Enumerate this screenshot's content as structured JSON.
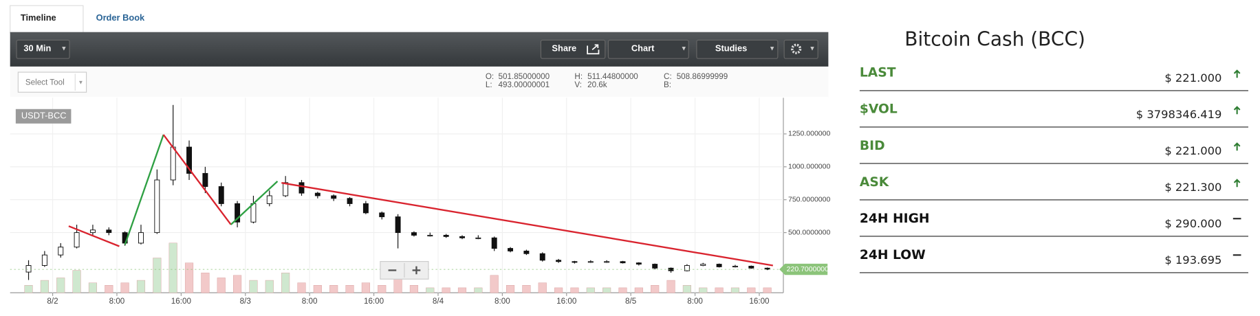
{
  "tabs": [
    "Timeline",
    "Order Book"
  ],
  "toolbar": {
    "interval": "30 Min",
    "share": "Share",
    "chart": "Chart",
    "studies": "Studies"
  },
  "select_tool": "Select Tool",
  "ohlc_info": [
    {
      "label": "O:",
      "value": "501.85000000"
    },
    {
      "label": "L:",
      "value": "493.00000001"
    },
    {
      "label": "H:",
      "value": "511.44800000"
    },
    {
      "label": "V:",
      "value": "20.6k"
    },
    {
      "label": "C:",
      "value": "508.86999999"
    },
    {
      "label": "B:"
    }
  ],
  "chart_data": {
    "type": "candlestick",
    "label": "USDT-BCC",
    "up_color": "#ffffff",
    "down_color": "#111111",
    "x": [
      -3,
      -1,
      1,
      3,
      5,
      7,
      9,
      11,
      13,
      15,
      17,
      19,
      21,
      23,
      25,
      27,
      29,
      31,
      33,
      35,
      37,
      39,
      41,
      43,
      45,
      47,
      49,
      51,
      53,
      55,
      57,
      59,
      61,
      63,
      65,
      67,
      69,
      71,
      73,
      75,
      77,
      79,
      81,
      83,
      85,
      87,
      89
    ],
    "ohlc": [
      [
        200,
        290,
        140,
        250
      ],
      [
        250,
        360,
        240,
        330
      ],
      [
        330,
        420,
        310,
        390
      ],
      [
        390,
        560,
        380,
        500
      ],
      [
        500,
        560,
        480,
        520
      ],
      [
        520,
        540,
        480,
        500
      ],
      [
        500,
        510,
        400,
        420
      ],
      [
        420,
        560,
        410,
        500
      ],
      [
        500,
        980,
        490,
        900
      ],
      [
        900,
        1470,
        860,
        1150
      ],
      [
        1150,
        1200,
        900,
        950
      ],
      [
        950,
        1000,
        800,
        850
      ],
      [
        850,
        880,
        700,
        720
      ],
      [
        720,
        740,
        540,
        580
      ],
      [
        580,
        780,
        570,
        720
      ],
      [
        720,
        820,
        700,
        780
      ],
      [
        780,
        930,
        770,
        880
      ],
      [
        880,
        900,
        780,
        800
      ],
      [
        800,
        810,
        760,
        780
      ],
      [
        780,
        790,
        740,
        760
      ],
      [
        760,
        770,
        700,
        720
      ],
      [
        720,
        740,
        640,
        650
      ],
      [
        650,
        660,
        600,
        620
      ],
      [
        620,
        640,
        380,
        500
      ],
      [
        500,
        510,
        470,
        480
      ],
      [
        480,
        500,
        470,
        480
      ],
      [
        480,
        490,
        460,
        470
      ],
      [
        470,
        480,
        450,
        460
      ],
      [
        460,
        480,
        450,
        460
      ],
      [
        460,
        470,
        360,
        380
      ],
      [
        380,
        390,
        350,
        360
      ],
      [
        360,
        370,
        330,
        340
      ],
      [
        340,
        350,
        280,
        290
      ],
      [
        290,
        300,
        270,
        280
      ],
      [
        280,
        285,
        265,
        275
      ],
      [
        275,
        290,
        270,
        280
      ],
      [
        280,
        290,
        270,
        280
      ],
      [
        280,
        285,
        265,
        270
      ],
      [
        270,
        275,
        250,
        260
      ],
      [
        260,
        265,
        220,
        230
      ],
      [
        230,
        235,
        195,
        210
      ],
      [
        210,
        260,
        205,
        250
      ],
      [
        250,
        270,
        245,
        260
      ],
      [
        260,
        265,
        235,
        240
      ],
      [
        240,
        255,
        235,
        245
      ],
      [
        245,
        250,
        225,
        230
      ],
      [
        230,
        235,
        215,
        221
      ]
    ],
    "volume": [
      3,
      5,
      6,
      9,
      4,
      3,
      4,
      5,
      14,
      20,
      12,
      8,
      6,
      7,
      5,
      5,
      8,
      4,
      3,
      3,
      3,
      4,
      3,
      9,
      3,
      2,
      2,
      2,
      2,
      7,
      3,
      3,
      4,
      2,
      2,
      2,
      2,
      2,
      2,
      3,
      5,
      3,
      2,
      2,
      2,
      2,
      2
    ],
    "volume_up_color": "#cfe8cf",
    "volume_down_color": "#f2c9c9",
    "xlim": [
      -5.3,
      91
    ],
    "xticks": [
      {
        "value": 0,
        "label": "8/2"
      },
      {
        "value": 8,
        "label": "8:00"
      },
      {
        "value": 16,
        "label": "16:00"
      },
      {
        "value": 24,
        "label": "8/3"
      },
      {
        "value": 32,
        "label": "8:00"
      },
      {
        "value": 40,
        "label": "16:00"
      },
      {
        "value": 48,
        "label": "8/4"
      },
      {
        "value": 56,
        "label": "8:00"
      },
      {
        "value": 64,
        "label": "16:00"
      },
      {
        "value": 72,
        "label": "8/5"
      },
      {
        "value": 80,
        "label": "8:00"
      },
      {
        "value": 88,
        "label": "16:00"
      }
    ],
    "ylim": [
      43,
      1524
    ],
    "yticks": [
      {
        "value": 1250,
        "label": "1250.000000"
      },
      {
        "value": 1000,
        "label": "1000.000000"
      },
      {
        "value": 750,
        "label": "750.0000000"
      },
      {
        "value": 500,
        "label": "500.0000000"
      }
    ],
    "grid": true,
    "last_price": {
      "value": 220.7,
      "label": "220.7000000",
      "color": "#8cc47a"
    },
    "trendlines": [
      {
        "color": "#d9232e",
        "x": [
          2,
          8.3
        ],
        "values": [
          549,
          396
        ]
      },
      {
        "color": "#2ea043",
        "x": [
          9,
          13.8
        ],
        "values": [
          408,
          1244
        ]
      },
      {
        "color": "#d9232e",
        "x": [
          13.8,
          22.2
        ],
        "values": [
          1244,
          561
        ]
      },
      {
        "color": "#2ea043",
        "x": [
          22.2,
          28
        ],
        "values": [
          561,
          890
        ]
      },
      {
        "color": "#d9232e",
        "x": [
          28.5,
          89.7
        ],
        "values": [
          878,
          250
        ]
      }
    ]
  },
  "ticker": {
    "title": "Bitcoin Cash (BCC)",
    "rows": [
      {
        "label": "LAST",
        "value": "$ 221.000",
        "trend": "up",
        "color": "#4a8a3a"
      },
      {
        "label": "$VOL",
        "value": "$ 3798346.419",
        "trend": "up",
        "color": "#4a8a3a"
      },
      {
        "label": "BID",
        "value": "$ 221.000",
        "trend": "up",
        "color": "#4a8a3a"
      },
      {
        "label": "ASK",
        "value": "$ 221.300",
        "trend": "up",
        "color": "#4a8a3a"
      },
      {
        "label": "24H HIGH",
        "value": "$ 290.000",
        "trend": "flat",
        "color": "#111111"
      },
      {
        "label": "24H LOW",
        "value": "$ 193.695",
        "trend": "flat",
        "color": "#111111"
      }
    ]
  }
}
